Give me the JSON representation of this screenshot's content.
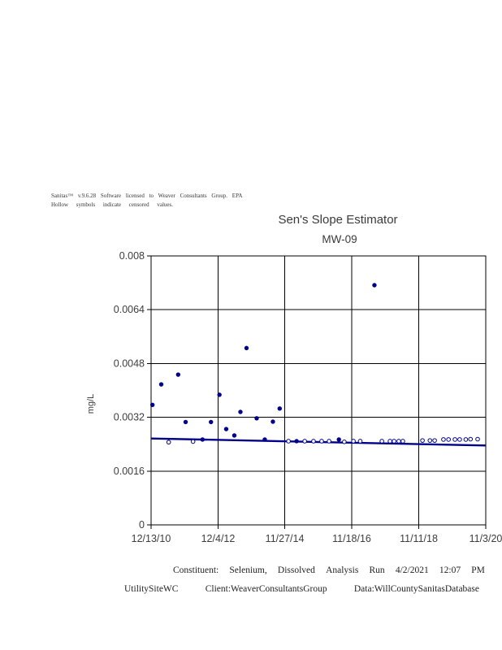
{
  "window": {
    "background": "#ffffff"
  },
  "header_note": {
    "line1": "Sanitas™ v.9.6.28 Software licensed to Weaver Consultants Group. EPA",
    "line2": "Hollow symbols indicate censored values."
  },
  "chart_data": {
    "type": "scatter",
    "title": "Sen's Slope Estimator",
    "subtitle": "MW-09",
    "ylabel": "mg/L",
    "xlabel": "",
    "ylim": [
      0,
      0.008
    ],
    "xlim_years": [
      2010.95,
      2020.84
    ],
    "grid": true,
    "legend_position": "none",
    "y_ticks": [
      {
        "value": 0,
        "label": "0"
      },
      {
        "value": 0.0016,
        "label": "0.0016"
      },
      {
        "value": 0.0032,
        "label": "0.0032"
      },
      {
        "value": 0.0048,
        "label": "0.0048"
      },
      {
        "value": 0.0064,
        "label": "0.0064"
      },
      {
        "value": 0.008,
        "label": "0.008"
      }
    ],
    "x_ticks": [
      {
        "year": 2010.95,
        "label": "12/13/10"
      },
      {
        "year": 2012.93,
        "label": "12/4/12"
      },
      {
        "year": 2014.9,
        "label": "11/27/14"
      },
      {
        "year": 2016.88,
        "label": "11/18/16"
      },
      {
        "year": 2018.86,
        "label": "11/11/18"
      },
      {
        "year": 2020.84,
        "label": "11/3/20"
      }
    ],
    "point_color": "#00008B",
    "trend_line": {
      "name": "sen-slope-trend-line",
      "color": "#00008B",
      "points": [
        {
          "x": 2010.95,
          "y": 0.00257
        },
        {
          "x": 2020.84,
          "y": 0.00236
        }
      ]
    },
    "series": [
      {
        "name": "detected values",
        "marker": "filled-circle",
        "points": [
          [
            2010.99,
            0.00357
          ],
          [
            2011.25,
            0.00418
          ],
          [
            2011.75,
            0.00447
          ],
          [
            2011.97,
            0.00306
          ],
          [
            2012.47,
            0.00254
          ],
          [
            2012.72,
            0.00306
          ],
          [
            2012.97,
            0.00387
          ],
          [
            2013.17,
            0.00285
          ],
          [
            2013.41,
            0.00266
          ],
          [
            2013.59,
            0.00336
          ],
          [
            2013.77,
            0.00526
          ],
          [
            2014.07,
            0.00317
          ],
          [
            2014.31,
            0.00254
          ],
          [
            2014.55,
            0.00307
          ],
          [
            2014.75,
            0.00346
          ],
          [
            2015.25,
            0.00249
          ],
          [
            2016.5,
            0.00254
          ],
          [
            2017.55,
            0.00713
          ]
        ]
      },
      {
        "name": "censored values (hollow symbols)",
        "marker": "hollow-circle",
        "points": [
          [
            2011.47,
            0.00246
          ],
          [
            2012.19,
            0.00248
          ],
          [
            2015.01,
            0.00249
          ],
          [
            2015.49,
            0.00249
          ],
          [
            2015.75,
            0.00249
          ],
          [
            2015.99,
            0.00249
          ],
          [
            2016.21,
            0.00249
          ],
          [
            2016.66,
            0.00247
          ],
          [
            2016.93,
            0.00249
          ],
          [
            2017.13,
            0.00249
          ],
          [
            2017.77,
            0.00249
          ],
          [
            2018.01,
            0.00249
          ],
          [
            2018.13,
            0.00249
          ],
          [
            2018.27,
            0.00249
          ],
          [
            2018.39,
            0.00249
          ],
          [
            2018.97,
            0.00251
          ],
          [
            2019.19,
            0.00251
          ],
          [
            2019.33,
            0.00251
          ],
          [
            2019.59,
            0.00254
          ],
          [
            2019.74,
            0.00254
          ],
          [
            2019.93,
            0.00254
          ],
          [
            2020.07,
            0.00254
          ],
          [
            2020.25,
            0.00254
          ],
          [
            2020.39,
            0.00255
          ],
          [
            2020.6,
            0.00255
          ]
        ]
      }
    ]
  },
  "footer": {
    "line1": [
      "Constituent:",
      "Selenium,",
      "Dissolved",
      "Analysis",
      "Run",
      "4/2/2021",
      "12:07",
      "PM"
    ],
    "line2": [
      "UtilitySiteWC",
      "Client:WeaverConsultantsGroup",
      "Data:WillCountySanitasDatabase"
    ]
  }
}
